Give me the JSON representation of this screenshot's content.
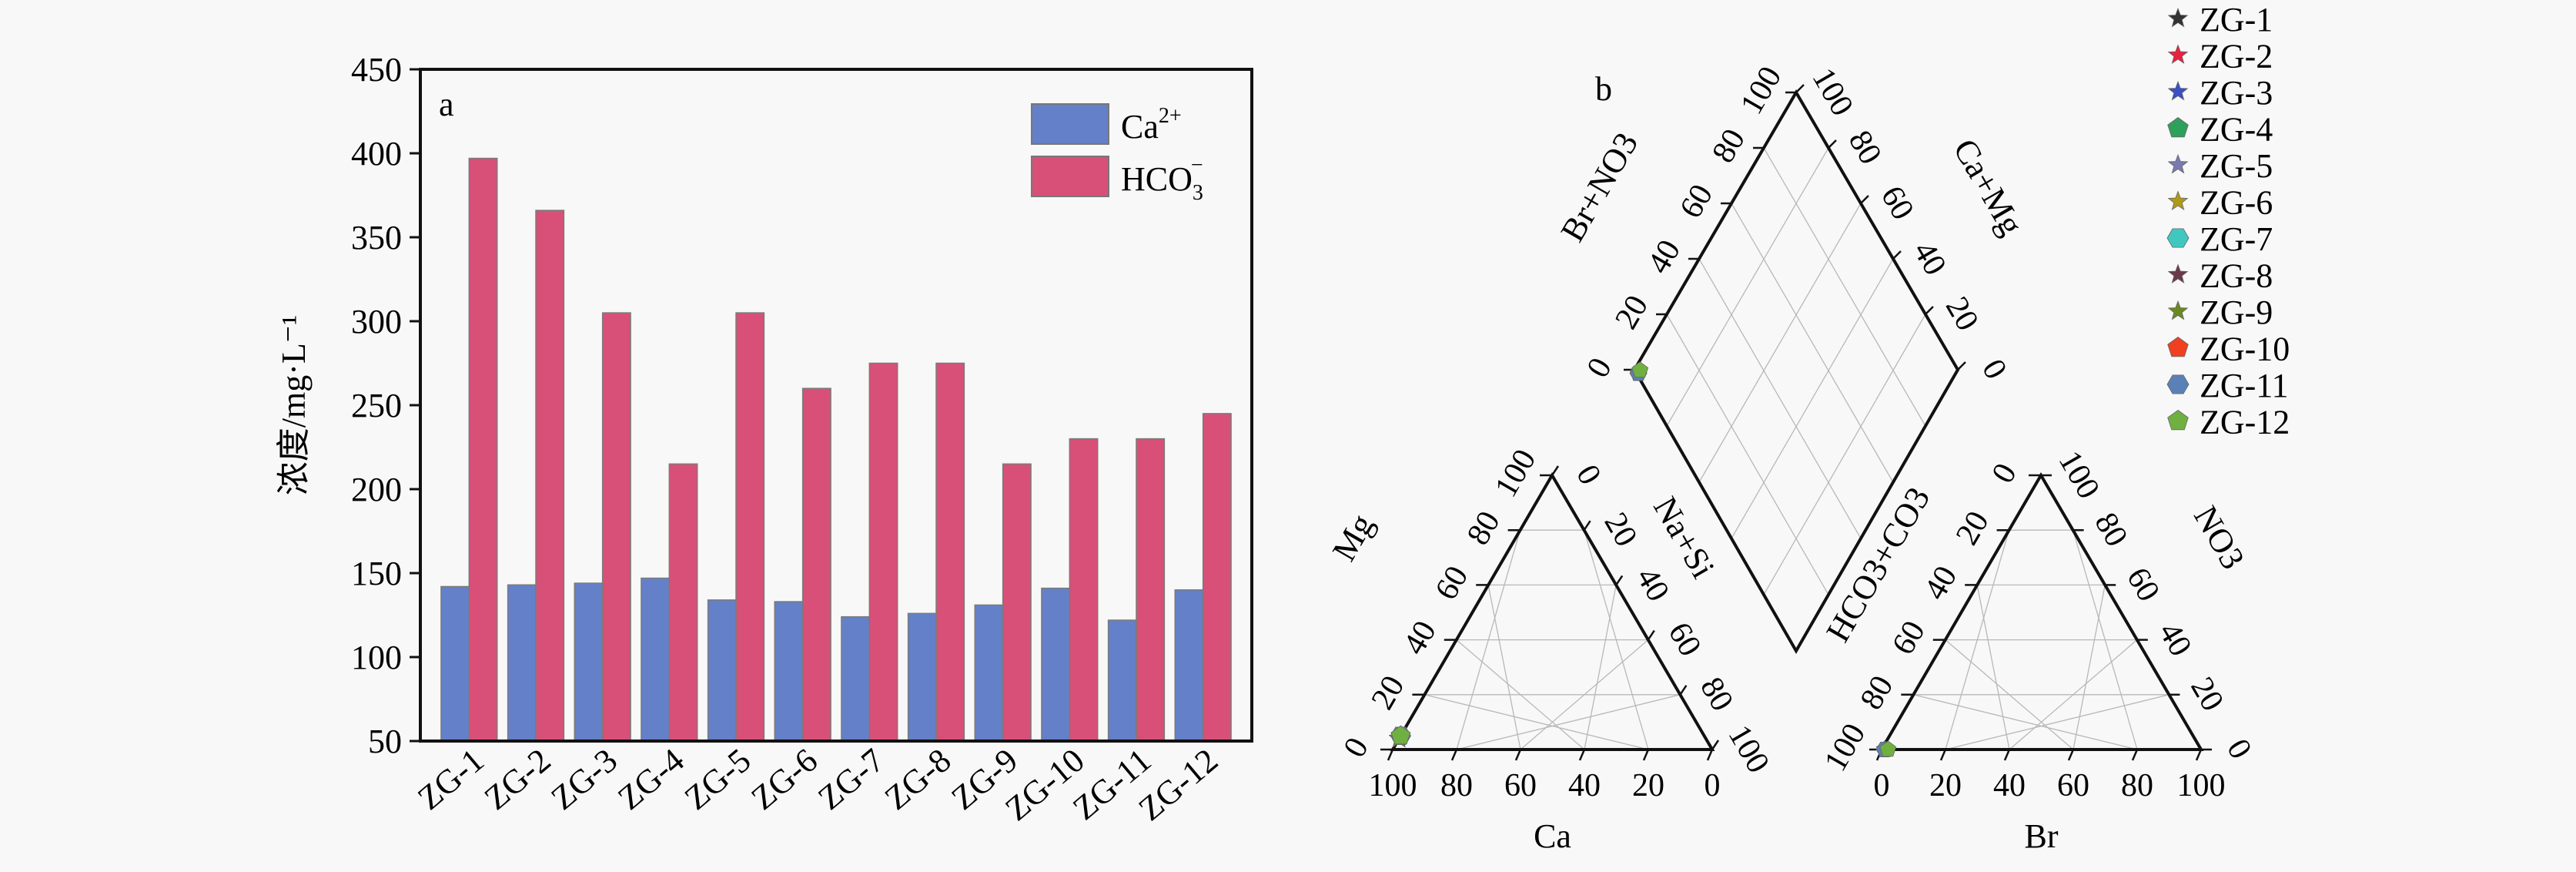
{
  "chart_data": [
    {
      "type": "bar",
      "panel_label": "a",
      "title": "",
      "xlabel": "",
      "ylabel": "浓度/mg·L⁻¹",
      "ylim": [
        50,
        450
      ],
      "yticks": [
        "50",
        "100",
        "150",
        "200",
        "250",
        "300",
        "350",
        "400",
        "450"
      ],
      "ytick_values": [
        50,
        100,
        150,
        200,
        250,
        300,
        350,
        400,
        450
      ],
      "categories": [
        "ZG-1",
        "ZG-2",
        "ZG-3",
        "ZG-4",
        "ZG-5",
        "ZG-6",
        "ZG-7",
        "ZG-8",
        "ZG-9",
        "ZG-10",
        "ZG-11",
        "ZG-12"
      ],
      "series": [
        {
          "name": "Ca²⁺",
          "legend_base": "Ca",
          "legend_sup": "2+",
          "legend_sub": "",
          "color": "#6480c8",
          "values": [
            142,
            143,
            144,
            147,
            134,
            133,
            124,
            126,
            131,
            141,
            122,
            140
          ]
        },
        {
          "name": "HCO₃⁻",
          "legend_base": "HCO",
          "legend_sup": "−",
          "legend_sub": "3",
          "color": "#d85078",
          "values": [
            397,
            366,
            305,
            215,
            305,
            260,
            275,
            275,
            215,
            230,
            230,
            245
          ]
        }
      ],
      "legend_position": "top-right",
      "grid": false
    },
    {
      "type": "scatter",
      "subtype": "piper",
      "panel_label": "b",
      "cation_triangle": {
        "bottom_axis": "Ca",
        "left_axis": "Mg",
        "right_axis": "Na+Si",
        "bottom_ticks": [
          "100",
          "80",
          "60",
          "40",
          "20",
          "0"
        ],
        "left_ticks": [
          "0",
          "20",
          "40",
          "60",
          "80",
          "100"
        ],
        "right_ticks": [
          "0",
          "20",
          "40",
          "60",
          "80",
          "100"
        ]
      },
      "anion_triangle": {
        "bottom_axis": "Br",
        "left_axis": "HCO3+CO3",
        "right_axis": "NO3",
        "bottom_ticks": [
          "0",
          "20",
          "40",
          "60",
          "80",
          "100"
        ],
        "left_ticks": [
          "100",
          "80",
          "60",
          "40",
          "20",
          "0"
        ],
        "right_ticks": [
          "100",
          "80",
          "60",
          "40",
          "20",
          "0"
        ]
      },
      "diamond": {
        "left_axis": "Br+NO3",
        "right_axis": "Ca+Mg",
        "left_ticks": [
          "0",
          "20",
          "40",
          "60",
          "80",
          "100"
        ],
        "right_ticks": [
          "100",
          "80",
          "60",
          "40",
          "20",
          "0"
        ]
      },
      "legend_position": "top-right",
      "samples": [
        {
          "name": "ZG-1",
          "marker": "star",
          "color": "#333333",
          "ca": 96,
          "mg": 4,
          "nasi": 0,
          "br": 1,
          "no3": 0,
          "hco3": 99
        },
        {
          "name": "ZG-2",
          "marker": "star",
          "color": "#e8203f",
          "ca": 96,
          "mg": 4,
          "nasi": 0,
          "br": 1,
          "no3": 0,
          "hco3": 99
        },
        {
          "name": "ZG-3",
          "marker": "star",
          "color": "#3a4fc8",
          "ca": 96,
          "mg": 4,
          "nasi": 0,
          "br": 1,
          "no3": 0,
          "hco3": 99
        },
        {
          "name": "ZG-4",
          "marker": "pentagon",
          "color": "#2fa05c",
          "ca": 95,
          "mg": 5,
          "nasi": 0,
          "br": 1,
          "no3": 0,
          "hco3": 99
        },
        {
          "name": "ZG-5",
          "marker": "star",
          "color": "#7a7ab0",
          "ca": 96,
          "mg": 4,
          "nasi": 0,
          "br": 1,
          "no3": 0,
          "hco3": 99
        },
        {
          "name": "ZG-6",
          "marker": "star",
          "color": "#b09a1a",
          "ca": 96,
          "mg": 4,
          "nasi": 0,
          "br": 1,
          "no3": 0,
          "hco3": 99
        },
        {
          "name": "ZG-7",
          "marker": "hexagon",
          "color": "#40c8c0",
          "ca": 95,
          "mg": 5,
          "nasi": 0,
          "br": 1,
          "no3": 0,
          "hco3": 99
        },
        {
          "name": "ZG-8",
          "marker": "star",
          "color": "#6a3a4a",
          "ca": 96,
          "mg": 4,
          "nasi": 0,
          "br": 1,
          "no3": 0,
          "hco3": 99
        },
        {
          "name": "ZG-9",
          "marker": "star",
          "color": "#6a8a20",
          "ca": 96,
          "mg": 4,
          "nasi": 0,
          "br": 1,
          "no3": 0,
          "hco3": 99
        },
        {
          "name": "ZG-10",
          "marker": "pentagon",
          "color": "#f04020",
          "ca": 95,
          "mg": 5,
          "nasi": 0,
          "br": 1,
          "no3": 0,
          "hco3": 99
        },
        {
          "name": "ZG-11",
          "marker": "hexagon",
          "color": "#5a80b8",
          "ca": 95,
          "mg": 5,
          "nasi": 0,
          "br": 1,
          "no3": 0,
          "hco3": 99
        },
        {
          "name": "ZG-12",
          "marker": "pentagon",
          "color": "#70b040",
          "ca": 95,
          "mg": 5,
          "nasi": 0,
          "br": 2,
          "no3": 0,
          "hco3": 98
        }
      ]
    }
  ]
}
